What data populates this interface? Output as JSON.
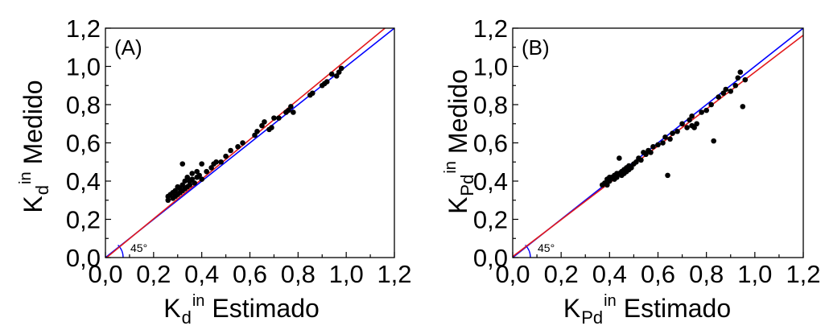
{
  "chart_data": [
    {
      "type": "scatter",
      "panel_label": "(A)",
      "xlabel": {
        "symbol": "K",
        "sub": "d",
        "sup": "in",
        "text": "Estimado"
      },
      "ylabel": {
        "symbol": "K",
        "sub": "d",
        "sup": "in",
        "text": "Medido"
      },
      "xlim": [
        0,
        1.2
      ],
      "ylim": [
        0,
        1.2
      ],
      "xticks": [
        {
          "value": 0.0,
          "label": "0,0"
        },
        {
          "value": 0.2,
          "label": "0,2"
        },
        {
          "value": 0.4,
          "label": "0,4"
        },
        {
          "value": 0.6,
          "label": "0,6"
        },
        {
          "value": 0.8,
          "label": "0,8"
        },
        {
          "value": 1.0,
          "label": "1,0"
        },
        {
          "value": 1.2,
          "label": "1,2"
        }
      ],
      "yticks": [
        {
          "value": 0.0,
          "label": "0,0"
        },
        {
          "value": 0.2,
          "label": "0,2"
        },
        {
          "value": 0.4,
          "label": "0,4"
        },
        {
          "value": 0.6,
          "label": "0,6"
        },
        {
          "value": 0.8,
          "label": "0,8"
        },
        {
          "value": 1.0,
          "label": "1,0"
        },
        {
          "value": 1.2,
          "label": "1,2"
        }
      ],
      "grid": false,
      "marker_color": "#000000",
      "lines": [
        {
          "slope": 1.0,
          "intercept": 0.0,
          "color": "#0000ff"
        },
        {
          "slope": 1.038,
          "intercept": -0.005,
          "color": "#e31a1c"
        }
      ],
      "annotation": {
        "text": "45°",
        "angle_deg": 45,
        "color": "#0000ff"
      },
      "points": [
        [
          0.26,
          0.3
        ],
        [
          0.26,
          0.32
        ],
        [
          0.27,
          0.33
        ],
        [
          0.28,
          0.31
        ],
        [
          0.28,
          0.34
        ],
        [
          0.29,
          0.32
        ],
        [
          0.29,
          0.35
        ],
        [
          0.3,
          0.33
        ],
        [
          0.3,
          0.37
        ],
        [
          0.31,
          0.34
        ],
        [
          0.31,
          0.36
        ],
        [
          0.32,
          0.35
        ],
        [
          0.32,
          0.38
        ],
        [
          0.32,
          0.49
        ],
        [
          0.33,
          0.36
        ],
        [
          0.33,
          0.4
        ],
        [
          0.34,
          0.37
        ],
        [
          0.34,
          0.42
        ],
        [
          0.35,
          0.38
        ],
        [
          0.35,
          0.4
        ],
        [
          0.36,
          0.41
        ],
        [
          0.36,
          0.44
        ],
        [
          0.37,
          0.39
        ],
        [
          0.38,
          0.42
        ],
        [
          0.38,
          0.45
        ],
        [
          0.39,
          0.43
        ],
        [
          0.4,
          0.41
        ],
        [
          0.4,
          0.49
        ],
        [
          0.42,
          0.45
        ],
        [
          0.44,
          0.47
        ],
        [
          0.45,
          0.49
        ],
        [
          0.46,
          0.5
        ],
        [
          0.48,
          0.5
        ],
        [
          0.5,
          0.53
        ],
        [
          0.52,
          0.56
        ],
        [
          0.55,
          0.58
        ],
        [
          0.57,
          0.6
        ],
        [
          0.62,
          0.64
        ],
        [
          0.63,
          0.66
        ],
        [
          0.65,
          0.69
        ],
        [
          0.66,
          0.71
        ],
        [
          0.68,
          0.67
        ],
        [
          0.69,
          0.68
        ],
        [
          0.7,
          0.73
        ],
        [
          0.72,
          0.73
        ],
        [
          0.75,
          0.76
        ],
        [
          0.76,
          0.77
        ],
        [
          0.77,
          0.79
        ],
        [
          0.78,
          0.76
        ],
        [
          0.85,
          0.85
        ],
        [
          0.86,
          0.86
        ],
        [
          0.9,
          0.9
        ],
        [
          0.91,
          0.91
        ],
        [
          0.92,
          0.92
        ],
        [
          0.94,
          0.96
        ],
        [
          0.96,
          0.95
        ],
        [
          0.97,
          0.97
        ],
        [
          0.98,
          0.99
        ]
      ]
    },
    {
      "type": "scatter",
      "panel_label": "(B)",
      "xlabel": {
        "symbol": "K",
        "sub": "Pd",
        "sup": "in",
        "text": "Estimado"
      },
      "ylabel": {
        "symbol": "K",
        "sub": "Pd",
        "sup": "in",
        "text": "Medido"
      },
      "xlim": [
        0,
        1.2
      ],
      "ylim": [
        0,
        1.2
      ],
      "xticks": [
        {
          "value": 0.0,
          "label": "0,0"
        },
        {
          "value": 0.2,
          "label": "0,2"
        },
        {
          "value": 0.4,
          "label": "0,4"
        },
        {
          "value": 0.6,
          "label": "0,6"
        },
        {
          "value": 0.8,
          "label": "0,8"
        },
        {
          "value": 1.0,
          "label": "1,0"
        },
        {
          "value": 1.2,
          "label": "1,2"
        }
      ],
      "yticks": [
        {
          "value": 0.0,
          "label": "0,0"
        },
        {
          "value": 0.2,
          "label": "0,2"
        },
        {
          "value": 0.4,
          "label": "0,4"
        },
        {
          "value": 0.6,
          "label": "0,6"
        },
        {
          "value": 0.8,
          "label": "0,8"
        },
        {
          "value": 1.0,
          "label": "1,0"
        },
        {
          "value": 1.2,
          "label": "1,2"
        }
      ],
      "grid": false,
      "marker_color": "#000000",
      "lines": [
        {
          "slope": 1.0,
          "intercept": 0.0,
          "color": "#0000ff"
        },
        {
          "slope": 0.965,
          "intercept": 0.005,
          "color": "#e31a1c"
        }
      ],
      "annotation": {
        "text": "45°",
        "angle_deg": 45,
        "color": "#0000ff"
      },
      "points": [
        [
          0.37,
          0.38
        ],
        [
          0.38,
          0.39
        ],
        [
          0.39,
          0.38
        ],
        [
          0.39,
          0.41
        ],
        [
          0.4,
          0.4
        ],
        [
          0.4,
          0.42
        ],
        [
          0.41,
          0.42
        ],
        [
          0.42,
          0.43
        ],
        [
          0.42,
          0.41
        ],
        [
          0.43,
          0.42
        ],
        [
          0.43,
          0.44
        ],
        [
          0.44,
          0.52
        ],
        [
          0.44,
          0.44
        ],
        [
          0.45,
          0.43
        ],
        [
          0.45,
          0.45
        ],
        [
          0.46,
          0.44
        ],
        [
          0.46,
          0.46
        ],
        [
          0.47,
          0.47
        ],
        [
          0.47,
          0.45
        ],
        [
          0.48,
          0.48
        ],
        [
          0.48,
          0.46
        ],
        [
          0.49,
          0.47
        ],
        [
          0.5,
          0.49
        ],
        [
          0.51,
          0.5
        ],
        [
          0.52,
          0.52
        ],
        [
          0.53,
          0.51
        ],
        [
          0.54,
          0.55
        ],
        [
          0.55,
          0.54
        ],
        [
          0.56,
          0.56
        ],
        [
          0.57,
          0.55
        ],
        [
          0.58,
          0.58
        ],
        [
          0.6,
          0.59
        ],
        [
          0.62,
          0.6
        ],
        [
          0.63,
          0.63
        ],
        [
          0.64,
          0.43
        ],
        [
          0.65,
          0.62
        ],
        [
          0.66,
          0.65
        ],
        [
          0.68,
          0.66
        ],
        [
          0.7,
          0.7
        ],
        [
          0.72,
          0.68
        ],
        [
          0.73,
          0.72
        ],
        [
          0.74,
          0.74
        ],
        [
          0.74,
          0.69
        ],
        [
          0.75,
          0.68
        ],
        [
          0.76,
          0.7
        ],
        [
          0.78,
          0.76
        ],
        [
          0.8,
          0.77
        ],
        [
          0.82,
          0.8
        ],
        [
          0.83,
          0.61
        ],
        [
          0.85,
          0.84
        ],
        [
          0.87,
          0.86
        ],
        [
          0.88,
          0.88
        ],
        [
          0.9,
          0.87
        ],
        [
          0.92,
          0.9
        ],
        [
          0.93,
          0.94
        ],
        [
          0.94,
          0.97
        ],
        [
          0.95,
          0.79
        ],
        [
          0.96,
          0.93
        ]
      ]
    }
  ]
}
